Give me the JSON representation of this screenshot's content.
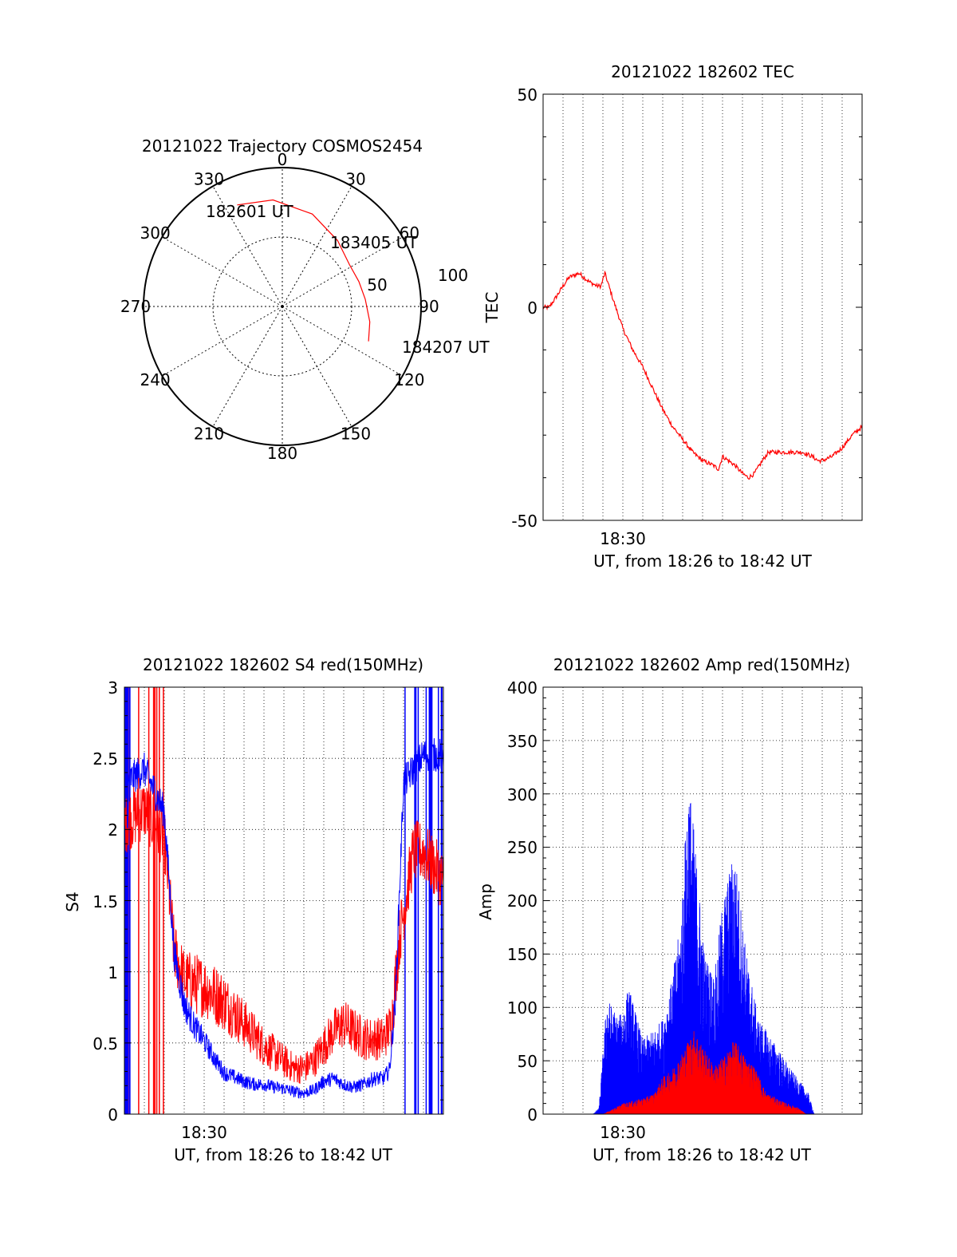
{
  "colors": {
    "red": "#ff0000",
    "blue": "#0000ff",
    "axis": "#000000",
    "grid": "#000000"
  },
  "chart_data": [
    {
      "type": "polar",
      "title": "20121022 Trajectory COSMOS2454",
      "angle_labels": [
        "0",
        "30",
        "60",
        "90",
        "120",
        "150",
        "180",
        "210",
        "240",
        "270",
        "300",
        "330"
      ],
      "radial_labels": [
        "50",
        "100"
      ],
      "direction": "clockwise, 0 at top",
      "grid": true,
      "trajectory": {
        "points": [
          [
            -24,
            80
          ],
          [
            -5,
            77
          ],
          [
            18,
            70
          ],
          [
            40,
            62
          ],
          [
            58,
            57
          ],
          [
            72,
            58
          ],
          [
            85,
            60
          ],
          [
            100,
            64
          ],
          [
            112,
            67
          ]
        ],
        "start_label": "182601 UT",
        "mid_label": "183405 UT",
        "end_label": "184207 UT"
      }
    },
    {
      "type": "line",
      "title": "20121022 182602 TEC",
      "ylabel": "TEC",
      "xlabel": "UT, from 18:26 to 18:42 UT",
      "xtick_labels": [
        "18:30"
      ],
      "ylim": [
        -50,
        50
      ],
      "yticks": [
        "50",
        "0",
        "-50"
      ],
      "xlim_minutes": [
        0,
        16
      ],
      "grid": true,
      "series": [
        {
          "color": "red",
          "x": [
            0,
            0.3,
            0.6,
            1,
            1.3,
            1.8,
            2.3,
            2.7,
            2.9,
            3.1,
            3.5,
            4,
            4.5,
            5,
            5.5,
            6,
            6.5,
            7,
            7.5,
            8,
            8.5,
            8.8,
            9,
            9.3,
            9.6,
            10,
            10.3,
            10.6,
            11,
            11.3,
            11.6,
            12,
            12.5,
            13,
            13.5,
            13.8,
            14,
            14.5,
            15,
            15.5,
            16
          ],
          "y": [
            0,
            0,
            2,
            5,
            7,
            8,
            6,
            5,
            5,
            8,
            2,
            -5,
            -10,
            -14,
            -19,
            -24,
            -28,
            -31,
            -34,
            -36,
            -37,
            -38,
            -35,
            -36,
            -37,
            -39,
            -40,
            -39,
            -36,
            -34,
            -34,
            -34,
            -34,
            -34,
            -35,
            -36,
            -36,
            -35,
            -33,
            -30,
            -28
          ]
        }
      ]
    },
    {
      "type": "line",
      "title": "20121022 182602 S4 red(150MHz)",
      "ylabel": "S4",
      "xlabel": "UT, from 18:26 to 18:42 UT",
      "xtick_labels": [
        "18:30"
      ],
      "ylim": [
        0,
        3
      ],
      "yticks": [
        "3",
        "2.5",
        "2",
        "1.5",
        "1",
        "0.5",
        "0"
      ],
      "xlim_minutes": [
        0,
        16
      ],
      "grid": true,
      "series": [
        {
          "color": "red",
          "noise": 0.22,
          "x": [
            0,
            1,
            2,
            2.5,
            3,
            4,
            5,
            6,
            7,
            8,
            8.5,
            9,
            9.5,
            10,
            10.5,
            11,
            11.5,
            12,
            12.5,
            13,
            13.4,
            13.8,
            14.5,
            15,
            15.5,
            16
          ],
          "y": [
            2,
            2.1,
            1.9,
            1.1,
            0.9,
            0.85,
            0.75,
            0.6,
            0.45,
            0.35,
            0.3,
            0.3,
            0.35,
            0.45,
            0.55,
            0.6,
            0.55,
            0.5,
            0.5,
            0.5,
            0.6,
            1.2,
            1.8,
            1.8,
            1.7,
            1.6
          ]
        },
        {
          "color": "blue",
          "noise": 0.12,
          "x": [
            0,
            1,
            2,
            2.5,
            3,
            3.5,
            4,
            4.5,
            5,
            5.5,
            6,
            6.5,
            7,
            7.5,
            8,
            8.5,
            9,
            9.5,
            10,
            10.5,
            11,
            11.5,
            12,
            12.5,
            13,
            13.3,
            13.6,
            14,
            15,
            16
          ],
          "y": [
            2.3,
            2.4,
            2.1,
            1.1,
            0.75,
            0.6,
            0.5,
            0.38,
            0.28,
            0.25,
            0.22,
            0.2,
            0.2,
            0.18,
            0.17,
            0.15,
            0.14,
            0.16,
            0.22,
            0.24,
            0.2,
            0.18,
            0.2,
            0.24,
            0.24,
            0.3,
            0.8,
            2.3,
            2.5,
            2.5
          ]
        }
      ]
    },
    {
      "type": "area",
      "title": "20121022 182602 Amp red(150MHz)",
      "ylabel": "Amp",
      "xlabel": "UT, from 18:26 to 18:42 UT",
      "xtick_labels": [
        "18:30"
      ],
      "ylim": [
        0,
        400
      ],
      "yticks": [
        "400",
        "350",
        "300",
        "250",
        "200",
        "150",
        "100",
        "50",
        "0"
      ],
      "xlim_minutes": [
        0,
        16
      ],
      "grid": true,
      "series": [
        {
          "color": "blue",
          "x": [
            0,
            2.5,
            2.8,
            3.2,
            3.8,
            4.3,
            5,
            5.6,
            6,
            6.4,
            6.9,
            7.3,
            7.6,
            8.1,
            8.6,
            9,
            9.6,
            10.2,
            10.8,
            11.5,
            12.5,
            13.3,
            13.6,
            16
          ],
          "y": [
            0,
            0,
            6,
            110,
            90,
            120,
            70,
            80,
            90,
            120,
            180,
            320,
            260,
            150,
            130,
            200,
            250,
            150,
            90,
            70,
            40,
            20,
            0,
            0
          ]
        },
        {
          "color": "red",
          "x": [
            0,
            3,
            4,
            5,
            5.6,
            6,
            6.4,
            6.9,
            7.3,
            7.6,
            8.1,
            8.6,
            9.1,
            9.6,
            10.1,
            10.6,
            11.2,
            12,
            12.8,
            13.2,
            16
          ],
          "y": [
            0,
            0,
            10,
            15,
            20,
            35,
            40,
            55,
            70,
            80,
            60,
            45,
            55,
            70,
            55,
            45,
            20,
            12,
            6,
            0,
            0
          ]
        }
      ]
    }
  ]
}
